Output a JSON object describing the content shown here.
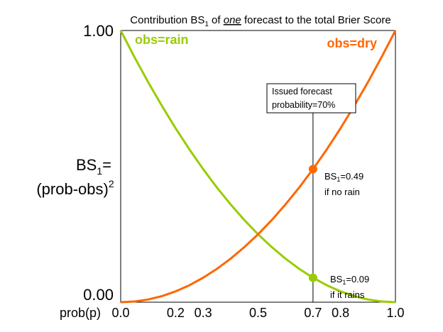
{
  "chart_data": {
    "type": "line",
    "title": {
      "pre": "Contribution BS",
      "sub": "1",
      "mid": " of ",
      "emph": "one",
      "post": " forecast to the total Brier Score"
    },
    "ylabel": {
      "line1_main": "BS",
      "line1_sub": "1",
      "line1_post": "=",
      "line2_main": "(prob-obs)",
      "line2_sup": "2"
    },
    "xlabel": "prob(p)",
    "xlim": [
      0.0,
      1.0
    ],
    "ylim": [
      0.0,
      1.0
    ],
    "x_ticks": [
      {
        "value": 0.0,
        "label": "0.0"
      },
      {
        "value": 0.2,
        "label": "0.2"
      },
      {
        "value": 0.3,
        "label": "0.3"
      },
      {
        "value": 0.5,
        "label": "0.5"
      },
      {
        "value": 0.7,
        "label": "0.7"
      },
      {
        "value": 0.8,
        "label": "0.8"
      },
      {
        "value": 1.0,
        "label": "1.0"
      }
    ],
    "y_ticks": [
      {
        "value": 0.0,
        "label": "0.00"
      },
      {
        "value": 1.0,
        "label": "1.00"
      }
    ],
    "grid": false,
    "series": [
      {
        "name": "obs=rain",
        "color": "#99cc00",
        "formula": "(1-p)^2",
        "x": [
          0.0,
          0.05,
          0.1,
          0.15,
          0.2,
          0.25,
          0.3,
          0.35,
          0.4,
          0.45,
          0.5,
          0.55,
          0.6,
          0.65,
          0.7,
          0.75,
          0.8,
          0.85,
          0.9,
          0.95,
          1.0
        ],
        "y": [
          1.0,
          0.9025,
          0.81,
          0.7225,
          0.64,
          0.5625,
          0.49,
          0.4225,
          0.36,
          0.3025,
          0.25,
          0.2025,
          0.16,
          0.1225,
          0.09,
          0.0625,
          0.04,
          0.0225,
          0.01,
          0.0025,
          0.0
        ]
      },
      {
        "name": "obs=dry",
        "color": "#ff6600",
        "formula": "p^2",
        "x": [
          0.0,
          0.05,
          0.1,
          0.15,
          0.2,
          0.25,
          0.3,
          0.35,
          0.4,
          0.45,
          0.5,
          0.55,
          0.6,
          0.65,
          0.7,
          0.75,
          0.8,
          0.85,
          0.9,
          0.95,
          1.0
        ],
        "y": [
          0.0,
          0.0025,
          0.01,
          0.0225,
          0.04,
          0.0625,
          0.09,
          0.1225,
          0.16,
          0.2025,
          0.25,
          0.3025,
          0.36,
          0.4225,
          0.49,
          0.5625,
          0.64,
          0.7225,
          0.81,
          0.9025,
          1.0
        ]
      }
    ],
    "forecast_marker": {
      "x": 0.7,
      "box_line1": "Issued forecast",
      "box_line2": "probability=70%"
    },
    "annotations": [
      {
        "series": "obs=dry",
        "x": 0.7,
        "y": 0.49,
        "color": "#ff6600",
        "label_main": "BS",
        "label_sub": "1",
        "label_post": "=0.49",
        "label_line2": "if no rain"
      },
      {
        "series": "obs=rain",
        "x": 0.7,
        "y": 0.09,
        "color": "#99cc00",
        "label_main": "BS",
        "label_sub": "1",
        "label_post": "=0.09",
        "label_line2": "if it rains"
      }
    ]
  }
}
